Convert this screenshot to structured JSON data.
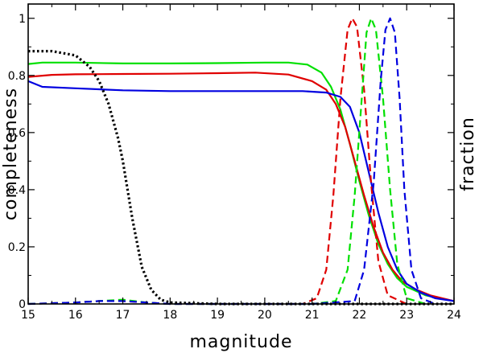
{
  "chart_data": {
    "type": "line",
    "xlabel": "magnitude",
    "ylabel": "completeness",
    "ylabel_right": "fraction",
    "xlim": [
      15,
      24
    ],
    "ylim": [
      0,
      1.05
    ],
    "xticks": [
      15,
      16,
      17,
      18,
      19,
      20,
      21,
      22,
      23,
      24
    ],
    "xtick_labels": [
      "15",
      "16",
      "17",
      "18",
      "19",
      "20",
      "21",
      "22",
      "23",
      "24"
    ],
    "yticks": [
      0,
      0.2,
      0.4,
      0.6,
      0.8,
      1
    ],
    "ytick_labels": [
      "0",
      "0.2",
      "0.4",
      "0.6",
      "0.8",
      "1"
    ],
    "grid": false,
    "series": [
      {
        "color": "#00e000",
        "dash": "solid",
        "x": [
          15,
          15.3,
          16,
          17,
          18,
          19,
          20,
          20.5,
          20.9,
          21.2,
          21.4,
          21.6,
          21.8,
          22,
          22.2,
          22.4,
          22.6,
          22.8,
          23,
          23.4,
          24
        ],
        "y": [
          0.84,
          0.845,
          0.845,
          0.842,
          0.842,
          0.843,
          0.845,
          0.845,
          0.838,
          0.81,
          0.76,
          0.68,
          0.56,
          0.43,
          0.31,
          0.21,
          0.14,
          0.09,
          0.06,
          0.03,
          0.01
        ]
      },
      {
        "color": "#e00000",
        "dash": "solid",
        "x": [
          15,
          15.5,
          16,
          17,
          18,
          19,
          19.8,
          20.5,
          21,
          21.3,
          21.5,
          21.7,
          21.9,
          22.1,
          22.3,
          22.5,
          22.7,
          22.9,
          23.2,
          23.5,
          24
        ],
        "y": [
          0.795,
          0.802,
          0.804,
          0.805,
          0.806,
          0.808,
          0.81,
          0.803,
          0.78,
          0.75,
          0.7,
          0.62,
          0.5,
          0.38,
          0.27,
          0.18,
          0.12,
          0.08,
          0.05,
          0.03,
          0.01
        ]
      },
      {
        "color": "#0000e0",
        "dash": "solid",
        "x": [
          15,
          15.3,
          16,
          17,
          18,
          19,
          20,
          20.8,
          21.3,
          21.6,
          21.8,
          22,
          22.2,
          22.4,
          22.6,
          22.8,
          23,
          23.3,
          23.6,
          24
        ],
        "y": [
          0.78,
          0.76,
          0.755,
          0.748,
          0.745,
          0.745,
          0.745,
          0.745,
          0.74,
          0.725,
          0.69,
          0.6,
          0.46,
          0.32,
          0.2,
          0.12,
          0.07,
          0.04,
          0.02,
          0.01
        ]
      },
      {
        "color": "#e00000",
        "dash": "dashed",
        "x": [
          15,
          16,
          16.5,
          17,
          17.5,
          18,
          19,
          20,
          20.8,
          21.1,
          21.3,
          21.45,
          21.6,
          21.75,
          21.85,
          21.95,
          22.1,
          22.25,
          22.4,
          22.6,
          23
        ],
        "y": [
          0,
          0.005,
          0.01,
          0.01,
          0.005,
          0,
          0,
          0,
          0,
          0.02,
          0.12,
          0.38,
          0.72,
          0.96,
          1.0,
          0.97,
          0.75,
          0.42,
          0.15,
          0.03,
          0
        ]
      },
      {
        "color": "#00e000",
        "dash": "dashed",
        "x": [
          15,
          16,
          16.5,
          17,
          17.5,
          18,
          19,
          20,
          21,
          21.5,
          21.75,
          21.9,
          22.05,
          22.15,
          22.25,
          22.35,
          22.5,
          22.65,
          22.8,
          23,
          23.4
        ],
        "y": [
          0,
          0.005,
          0.01,
          0.015,
          0.005,
          0,
          0,
          0,
          0,
          0.01,
          0.12,
          0.38,
          0.72,
          0.95,
          1.0,
          0.96,
          0.72,
          0.4,
          0.14,
          0.02,
          0
        ]
      },
      {
        "color": "#0000e0",
        "dash": "dashed",
        "x": [
          15,
          16,
          16.5,
          17,
          17.5,
          18,
          19,
          20,
          21,
          21.9,
          22.1,
          22.3,
          22.45,
          22.55,
          22.65,
          22.75,
          22.85,
          22.95,
          23.1,
          23.3,
          23.6
        ],
        "y": [
          0,
          0.005,
          0.01,
          0.01,
          0.005,
          0,
          0,
          0,
          0,
          0.01,
          0.12,
          0.42,
          0.78,
          0.96,
          1.0,
          0.95,
          0.72,
          0.4,
          0.12,
          0.02,
          0
        ]
      },
      {
        "color": "#000000",
        "dash": "dotted",
        "x": [
          15,
          15.5,
          16,
          16.3,
          16.5,
          16.7,
          16.9,
          17.0,
          17.2,
          17.4,
          17.6,
          17.8,
          18,
          19,
          20,
          21,
          22,
          23,
          24
        ],
        "y": [
          0.885,
          0.885,
          0.87,
          0.83,
          0.78,
          0.7,
          0.58,
          0.5,
          0.3,
          0.13,
          0.05,
          0.015,
          0.005,
          0,
          0,
          0,
          0,
          0,
          0
        ]
      }
    ]
  }
}
